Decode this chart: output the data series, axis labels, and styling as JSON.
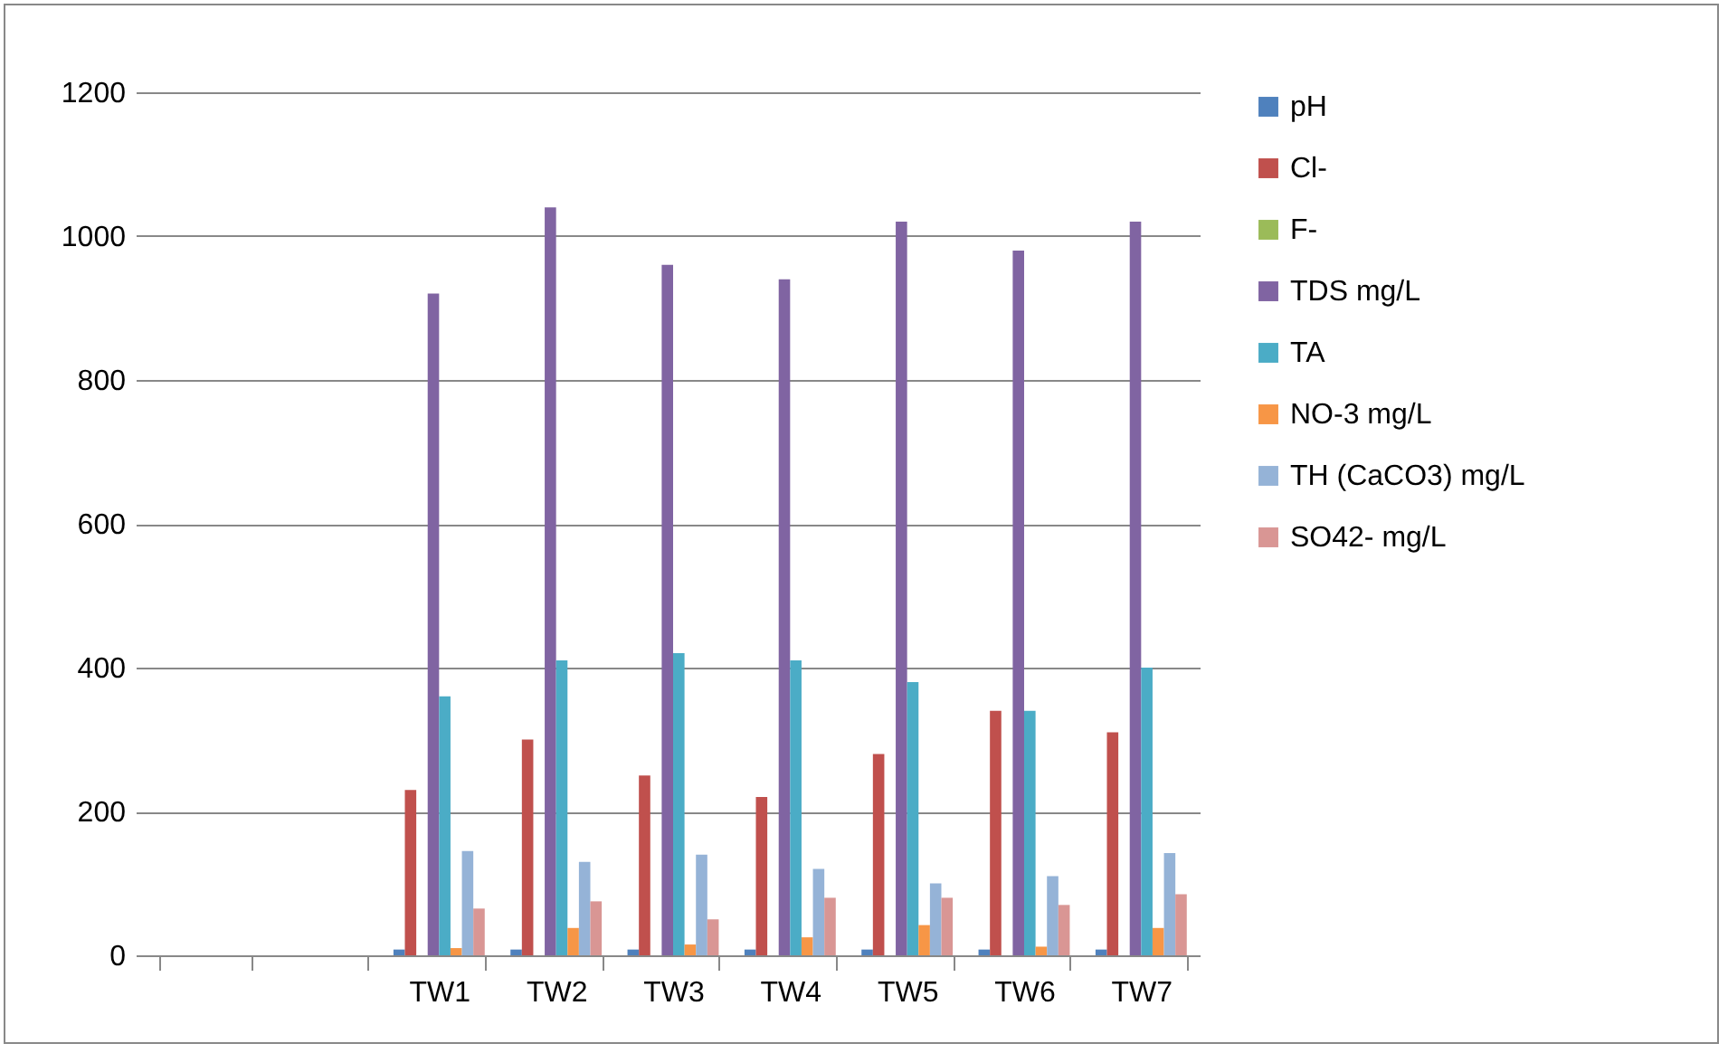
{
  "chart_data": {
    "type": "bar",
    "categories": [
      null,
      null,
      "TW1",
      "TW2",
      "TW3",
      "TW4",
      "TW5",
      "TW6",
      "TW7"
    ],
    "series": [
      {
        "name": "pH",
        "color": "#4f81bd",
        "values": [
          null,
          null,
          8,
          8,
          8,
          8,
          8,
          8,
          8
        ]
      },
      {
        "name": "Cl-",
        "color": "#c0504d",
        "values": [
          null,
          null,
          230,
          300,
          250,
          220,
          280,
          340,
          310
        ]
      },
      {
        "name": "F-",
        "color": "#9bbb59",
        "values": [
          null,
          null,
          null,
          null,
          null,
          null,
          null,
          null,
          null
        ]
      },
      {
        "name": "TDS mg/L",
        "color": "#8064a2",
        "values": [
          null,
          null,
          920,
          1040,
          960,
          940,
          1020,
          980,
          1020
        ]
      },
      {
        "name": "TA",
        "color": "#4bacc6",
        "values": [
          null,
          null,
          360,
          410,
          420,
          410,
          380,
          340,
          400
        ]
      },
      {
        "name": "NO-3 mg/L",
        "color": "#f79646",
        "values": [
          null,
          null,
          10,
          38,
          15,
          25,
          42,
          12,
          38
        ]
      },
      {
        "name": "TH (CaCO3)  mg/L",
        "color": "#95b3d7",
        "values": [
          null,
          null,
          145,
          130,
          140,
          120,
          100,
          110,
          142
        ]
      },
      {
        "name": "SO42- mg/L",
        "color": "#d99694",
        "values": [
          null,
          null,
          65,
          75,
          50,
          80,
          80,
          70,
          85
        ]
      }
    ],
    "ylim": [
      0,
      1200
    ],
    "yticks": [
      0,
      200,
      400,
      600,
      800,
      1000,
      1200
    ],
    "grid": "y",
    "legend": "right"
  }
}
